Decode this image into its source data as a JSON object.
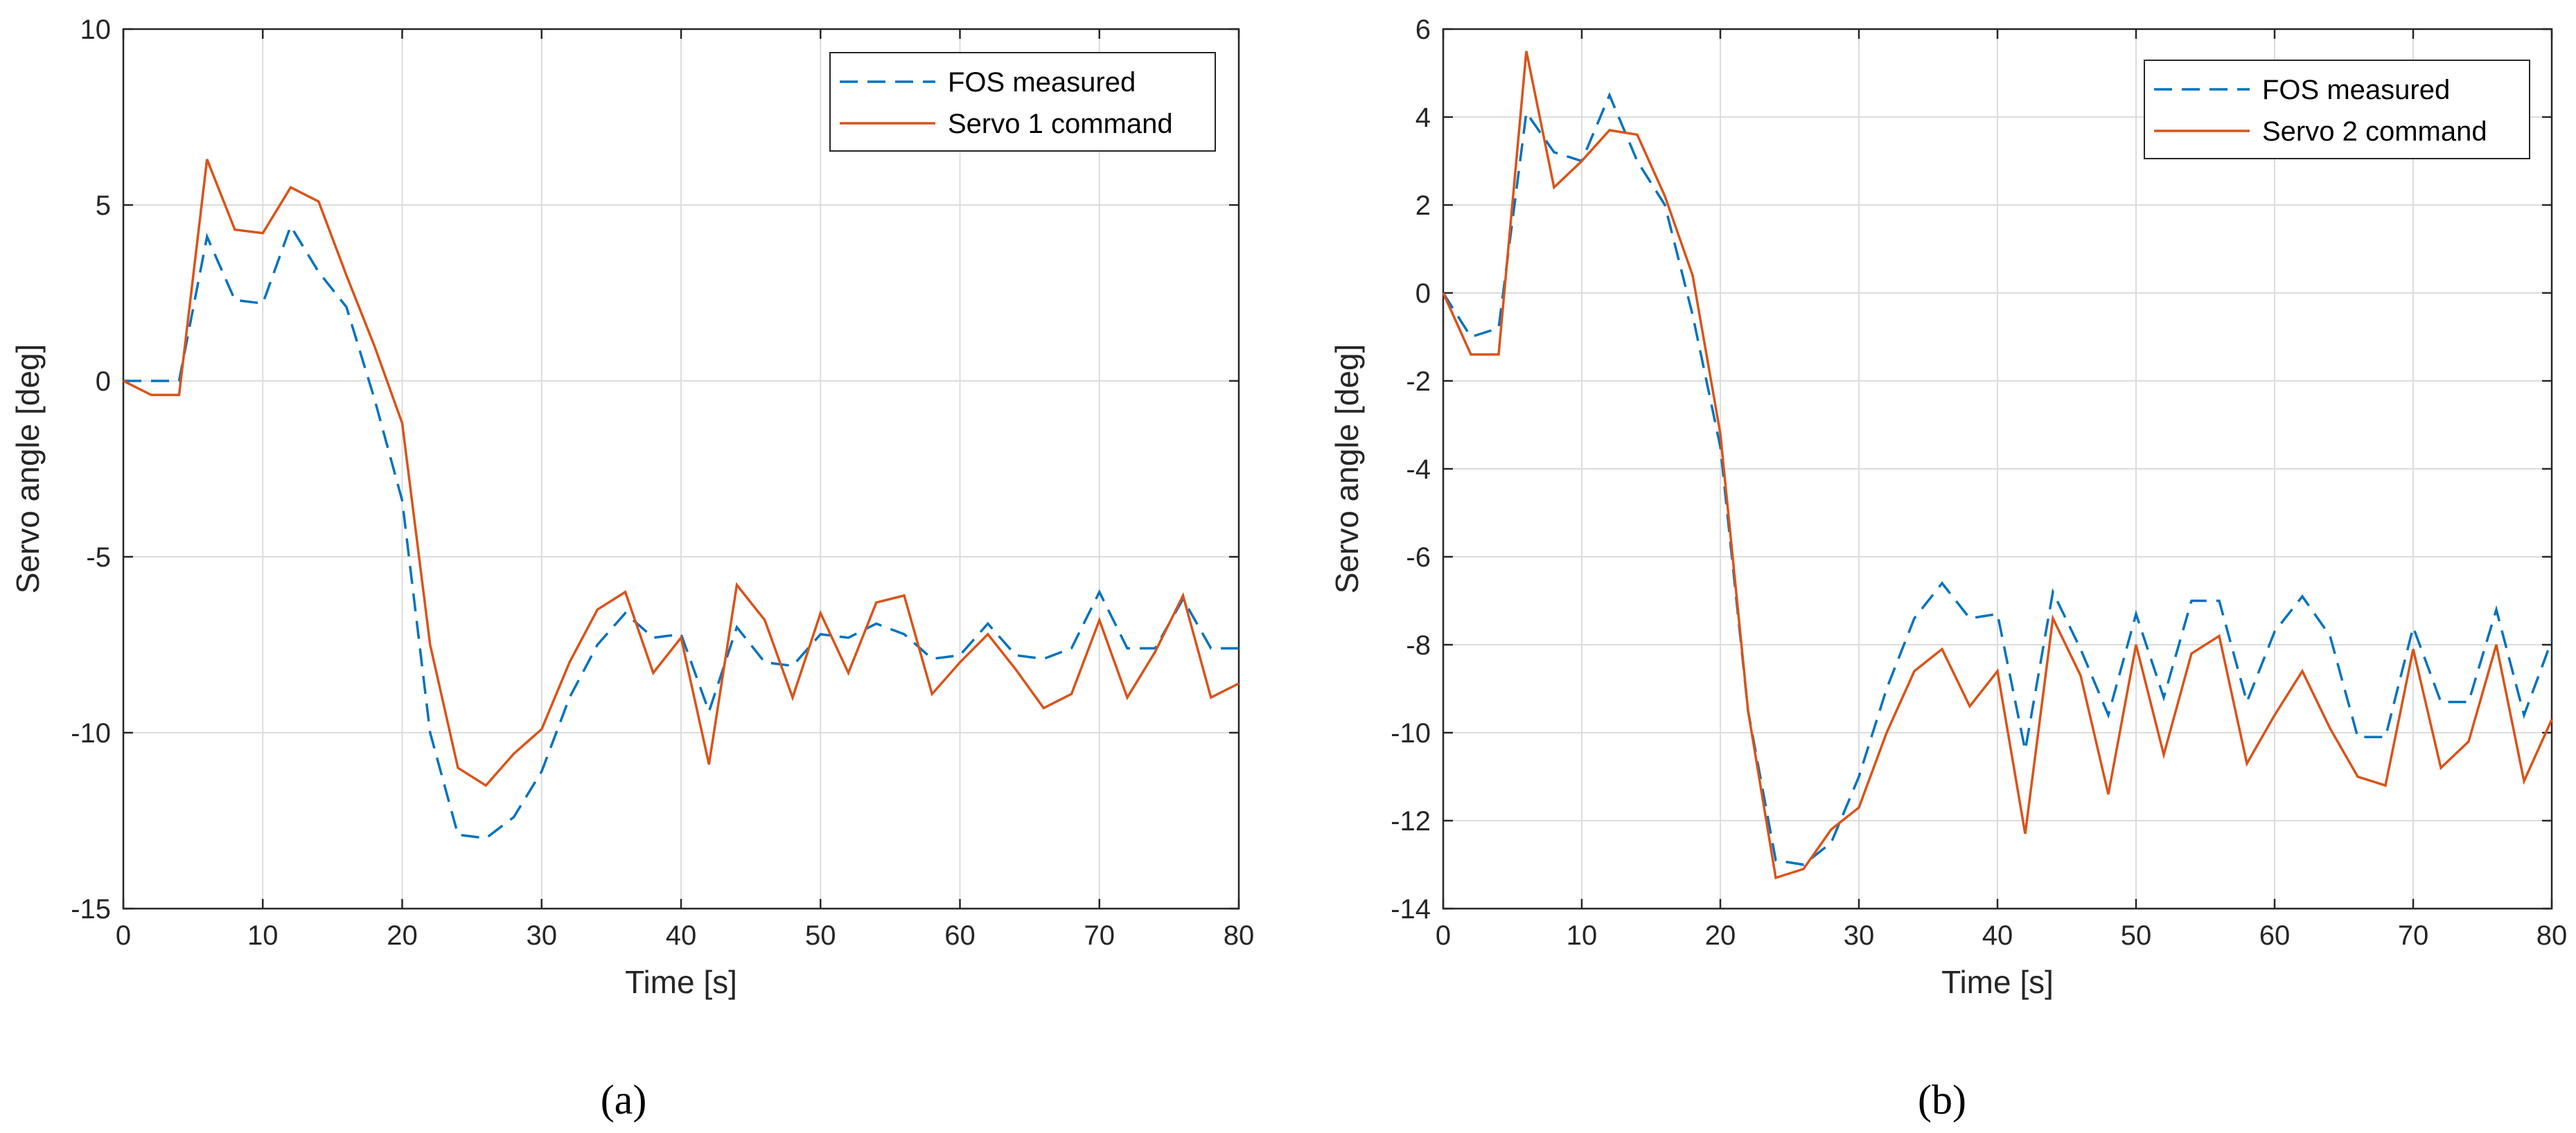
{
  "chart_data": [
    {
      "type": "line",
      "caption": "(a)",
      "xlabel": "Time [s]",
      "ylabel": "Servo angle [deg]",
      "xlim": [
        0,
        80
      ],
      "ylim": [
        -15,
        10
      ],
      "xticks": [
        0,
        10,
        20,
        30,
        40,
        50,
        60,
        70,
        80
      ],
      "yticks": [
        -15,
        -10,
        -5,
        0,
        5,
        10
      ],
      "grid": true,
      "legend_position": "top-right",
      "series": [
        {
          "name": "FOS measured",
          "style": "dashed",
          "color": "#0072BD",
          "x": [
            0,
            2,
            4,
            6,
            8,
            10,
            12,
            14,
            16,
            18,
            20,
            22,
            24,
            26,
            28,
            30,
            32,
            34,
            36,
            38,
            40,
            42,
            44,
            46,
            48,
            50,
            52,
            54,
            56,
            58,
            60,
            62,
            64,
            66,
            68,
            70,
            72,
            74,
            76,
            78,
            80
          ],
          "values": [
            0,
            0,
            0,
            4.1,
            2.3,
            2.2,
            4.4,
            3.1,
            2.1,
            -0.5,
            -3.4,
            -10,
            -12.9,
            -13,
            -12.4,
            -11.1,
            -9.0,
            -7.5,
            -6.6,
            -7.3,
            -7.2,
            -9.4,
            -7.0,
            -8.0,
            -8.1,
            -7.2,
            -7.3,
            -6.9,
            -7.2,
            -7.9,
            -7.8,
            -6.9,
            -7.8,
            -7.9,
            -7.6,
            -6.0,
            -7.6,
            -7.6,
            -6.2,
            -7.6,
            -7.6
          ]
        },
        {
          "name": "Servo 1 command",
          "style": "solid",
          "color": "#D95319",
          "x": [
            0,
            2,
            4,
            6,
            8,
            10,
            12,
            14,
            16,
            18,
            20,
            22,
            24,
            26,
            28,
            30,
            32,
            34,
            36,
            38,
            40,
            42,
            44,
            46,
            48,
            50,
            52,
            54,
            56,
            58,
            60,
            62,
            64,
            66,
            68,
            70,
            72,
            74,
            76,
            78,
            80
          ],
          "values": [
            0,
            -0.4,
            -0.4,
            6.3,
            4.3,
            4.2,
            5.5,
            5.1,
            3.0,
            1.0,
            -1.2,
            -7.5,
            -11.0,
            -11.5,
            -10.6,
            -9.9,
            -8.0,
            -6.5,
            -6.0,
            -8.3,
            -7.3,
            -10.9,
            -5.8,
            -6.8,
            -9.0,
            -6.6,
            -8.3,
            -6.3,
            -6.1,
            -8.9,
            -8.0,
            -7.2,
            -8.2,
            -9.3,
            -8.9,
            -6.8,
            -9.0,
            -7.7,
            -6.1,
            -9.0,
            -8.6
          ]
        }
      ]
    },
    {
      "type": "line",
      "caption": "(b)",
      "xlabel": "Time [s]",
      "ylabel": "Servo angle [deg]",
      "xlim": [
        0,
        80
      ],
      "ylim": [
        -14,
        6
      ],
      "xticks": [
        0,
        10,
        20,
        30,
        40,
        50,
        60,
        70,
        80
      ],
      "yticks": [
        -14,
        -12,
        -10,
        -8,
        -6,
        -4,
        -2,
        0,
        2,
        4,
        6
      ],
      "grid": true,
      "legend_position": "top-right",
      "series": [
        {
          "name": "FOS measured",
          "style": "dashed",
          "color": "#0072BD",
          "x": [
            0,
            2,
            4,
            6,
            8,
            10,
            12,
            14,
            16,
            18,
            20,
            22,
            24,
            26,
            28,
            30,
            32,
            34,
            36,
            38,
            40,
            42,
            44,
            46,
            48,
            50,
            52,
            54,
            56,
            58,
            60,
            62,
            64,
            66,
            68,
            70,
            72,
            74,
            76,
            78,
            80
          ],
          "values": [
            0,
            -1.0,
            -0.8,
            4.1,
            3.2,
            3.0,
            4.5,
            3.0,
            2.0,
            -0.5,
            -3.5,
            -9.5,
            -12.9,
            -13.0,
            -12.5,
            -11.0,
            -9.0,
            -7.4,
            -6.6,
            -7.4,
            -7.3,
            -10.4,
            -6.8,
            -8.1,
            -9.6,
            -7.3,
            -9.2,
            -7.0,
            -7.0,
            -9.3,
            -7.7,
            -6.9,
            -7.8,
            -10.1,
            -10.1,
            -7.6,
            -9.3,
            -9.3,
            -7.2,
            -9.6,
            -7.9
          ]
        },
        {
          "name": "Servo 2 command",
          "style": "solid",
          "color": "#D95319",
          "x": [
            0,
            2,
            4,
            6,
            8,
            10,
            12,
            14,
            16,
            18,
            20,
            22,
            24,
            26,
            28,
            30,
            32,
            34,
            36,
            38,
            40,
            42,
            44,
            46,
            48,
            50,
            52,
            54,
            56,
            58,
            60,
            62,
            64,
            66,
            68,
            70,
            72,
            74,
            76,
            78,
            80
          ],
          "values": [
            0,
            -1.4,
            -1.4,
            5.5,
            2.4,
            3.0,
            3.7,
            3.6,
            2.2,
            0.4,
            -3.2,
            -9.5,
            -13.3,
            -13.1,
            -12.2,
            -11.7,
            -10.0,
            -8.6,
            -8.1,
            -9.4,
            -8.6,
            -12.3,
            -7.4,
            -8.7,
            -11.4,
            -8.0,
            -10.5,
            -8.2,
            -7.8,
            -10.7,
            -9.6,
            -8.6,
            -9.9,
            -11.0,
            -11.2,
            -8.1,
            -10.8,
            -10.2,
            -8.0,
            -11.1,
            -9.7
          ]
        }
      ]
    }
  ]
}
